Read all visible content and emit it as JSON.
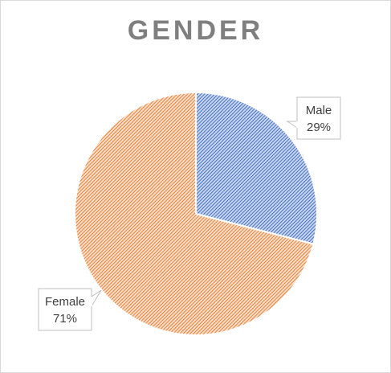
{
  "chart_data": {
    "type": "pie",
    "title": "GENDER",
    "categories": [
      "Male",
      "Female"
    ],
    "values": [
      29,
      71
    ],
    "value_labels": [
      "29%",
      "71%"
    ],
    "colors": [
      "#4472c4",
      "#ed7d31"
    ],
    "fill_pattern": "diagonal-hatch",
    "start_angle_deg": 0,
    "direction": "clockwise",
    "legend": "none"
  }
}
